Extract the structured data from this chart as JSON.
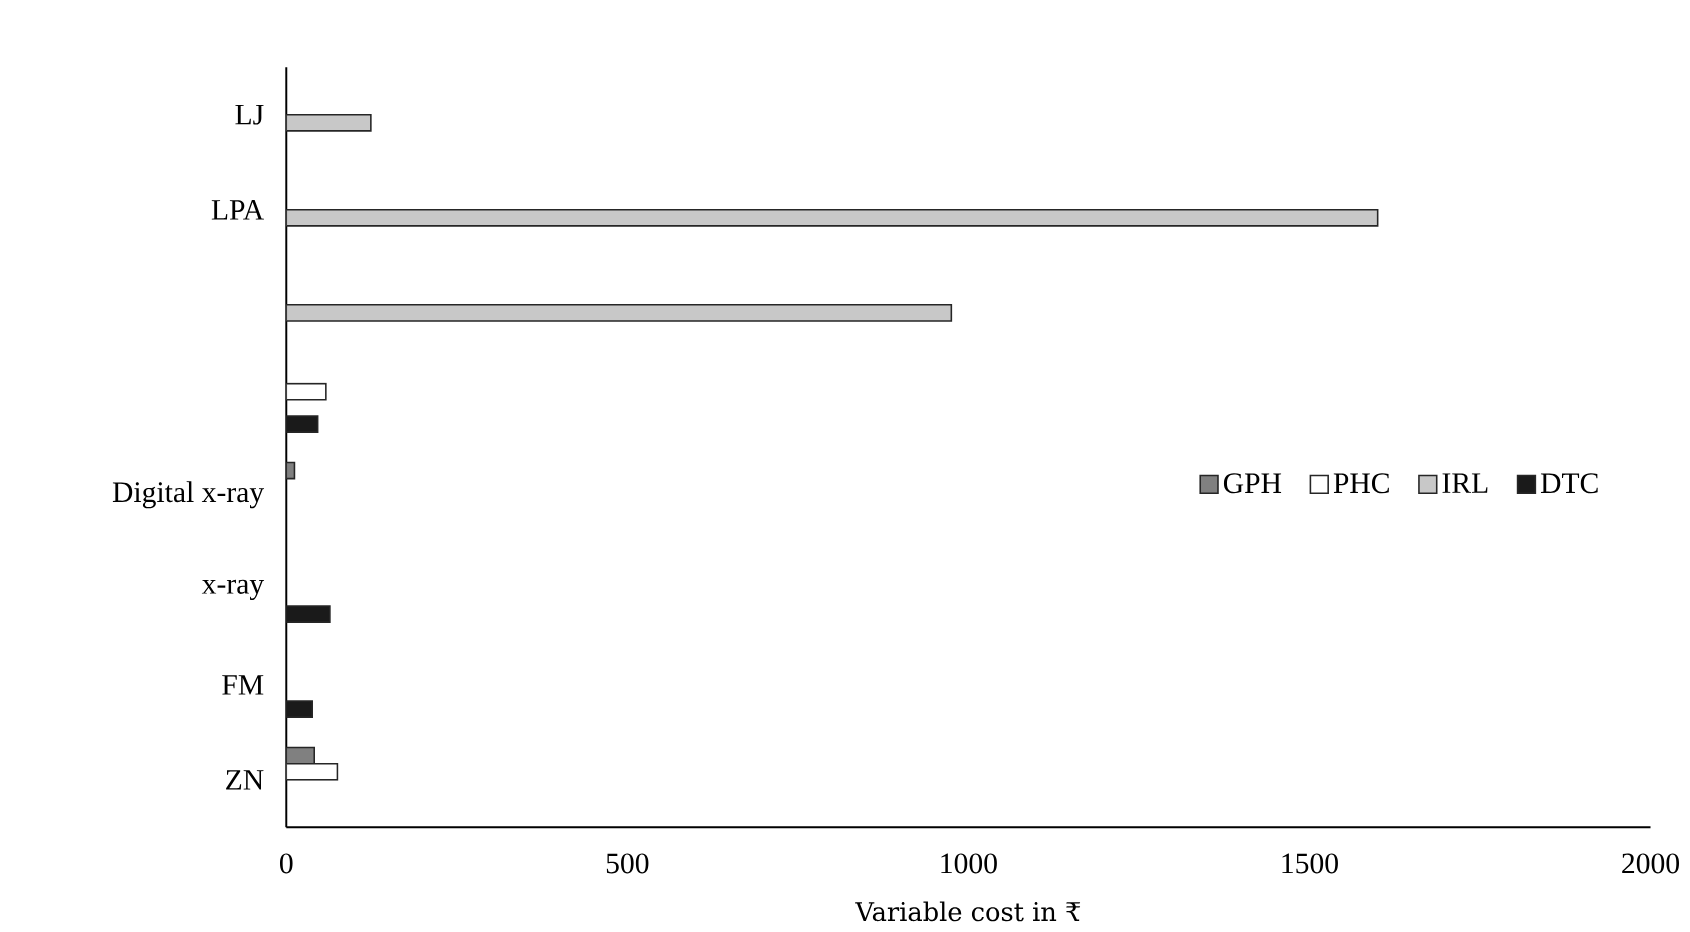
{
  "chart_data": {
    "type": "bar",
    "orientation": "horizontal",
    "xlabel": "Variable cost in ₹",
    "categories": [
      "LJ",
      "LPA",
      null,
      null,
      "Digital x-ray",
      "x-ray",
      "FM",
      "ZN"
    ],
    "series": [
      {
        "name": "GPH",
        "color": "#808080",
        "values": [
          null,
          null,
          null,
          null,
          12,
          null,
          null,
          41
        ]
      },
      {
        "name": "PHC",
        "color": "#ffffff",
        "values": [
          null,
          null,
          null,
          58,
          null,
          null,
          null,
          75
        ]
      },
      {
        "name": "IRL",
        "color": "#c8c8c8",
        "values": [
          124,
          1600,
          975,
          null,
          null,
          null,
          null,
          null
        ]
      },
      {
        "name": "DTC",
        "color": "#1a1a1a",
        "values": [
          null,
          null,
          null,
          46,
          null,
          64,
          38,
          null
        ]
      }
    ],
    "xlim": [
      0,
      2000
    ],
    "xticks": [
      0,
      500,
      1000,
      1500,
      2000
    ],
    "grid": false,
    "legend": "right"
  }
}
